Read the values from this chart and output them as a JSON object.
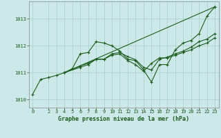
{
  "title": "Graphe pression niveau de la mer (hPa)",
  "background_color": "#cce8e8",
  "grid_color": "#aad4cc",
  "line_color": "#1a5c1a",
  "xlim": [
    -0.5,
    23.5
  ],
  "ylim": [
    1009.7,
    1013.65
  ],
  "xticks": [
    0,
    2,
    3,
    4,
    5,
    6,
    7,
    8,
    9,
    10,
    11,
    12,
    13,
    14,
    15,
    16,
    17,
    18,
    19,
    20,
    21,
    22,
    23
  ],
  "yticks": [
    1010,
    1011,
    1012,
    1013
  ],
  "lines": [
    {
      "x": [
        0,
        1,
        2,
        3,
        4,
        5,
        6,
        7,
        8,
        9,
        10,
        11,
        12,
        13,
        14,
        15,
        16,
        17,
        18,
        19,
        20,
        21,
        22,
        23
      ],
      "y": [
        1010.2,
        1010.75,
        1010.82,
        1010.9,
        1011.0,
        1011.15,
        1011.7,
        1011.75,
        1012.15,
        1012.1,
        1012.0,
        1011.8,
        1011.5,
        1011.45,
        1011.1,
        1010.65,
        1011.3,
        1011.3,
        1011.85,
        1012.1,
        1012.2,
        1012.45,
        1013.1,
        1013.45
      ]
    },
    {
      "x": [
        4,
        6,
        7,
        8,
        9,
        10,
        11,
        12,
        13,
        14,
        15,
        16,
        17,
        18,
        19,
        20,
        21,
        22,
        23
      ],
      "y": [
        1011.0,
        1011.25,
        1011.35,
        1011.5,
        1011.5,
        1011.65,
        1011.7,
        1011.45,
        1011.3,
        1011.05,
        1011.35,
        1011.55,
        1011.55,
        1011.65,
        1011.75,
        1011.85,
        1012.0,
        1012.1,
        1012.3
      ]
    },
    {
      "x": [
        4,
        6,
        7,
        8,
        9,
        10,
        11,
        12,
        13,
        14,
        15,
        16,
        17,
        18,
        19,
        20,
        21,
        22,
        23
      ],
      "y": [
        1011.0,
        1011.2,
        1011.3,
        1011.5,
        1011.5,
        1011.7,
        1011.75,
        1011.6,
        1011.48,
        1011.2,
        1011.1,
        1011.5,
        1011.58,
        1011.7,
        1011.8,
        1011.95,
        1012.15,
        1012.25,
        1012.45
      ]
    },
    {
      "x": [
        4,
        23
      ],
      "y": [
        1011.0,
        1013.45
      ]
    }
  ]
}
